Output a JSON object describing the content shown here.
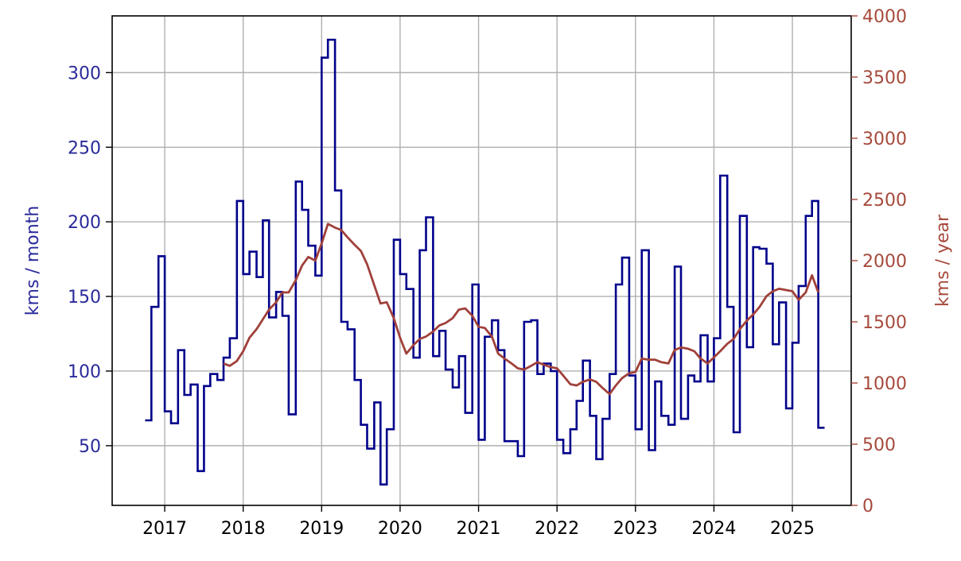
{
  "chart_data": {
    "type": "line",
    "title": "",
    "xlabel": "",
    "ylabel_left": "kms / month",
    "ylabel_right": "kms / year",
    "xlim": [
      2016.33,
      2025.75
    ],
    "ylim_left": [
      10,
      338
    ],
    "ylim_right": [
      0,
      4000
    ],
    "grid": true,
    "x_ticks": [
      2017,
      2018,
      2019,
      2020,
      2021,
      2022,
      2023,
      2024,
      2025
    ],
    "y_ticks_left": [
      50,
      100,
      150,
      200,
      250,
      300
    ],
    "y_ticks_right": [
      0,
      500,
      1000,
      1500,
      2000,
      2500,
      3000,
      3500,
      4000
    ],
    "colors": {
      "left": "#00008b",
      "right": "#a0403a",
      "left_tick": "#2a2a9a",
      "right_tick": "#a64a3c"
    },
    "series": [
      {
        "axis": "left",
        "style": "steps-post",
        "x": [
          2016.75,
          2016.83,
          2016.92,
          2017.0,
          2017.08,
          2017.17,
          2017.25,
          2017.33,
          2017.42,
          2017.5,
          2017.58,
          2017.67,
          2017.75,
          2017.83,
          2017.92,
          2018.0,
          2018.08,
          2018.17,
          2018.25,
          2018.33,
          2018.42,
          2018.5,
          2018.58,
          2018.67,
          2018.75,
          2018.83,
          2018.92,
          2019.0,
          2019.08,
          2019.17,
          2019.25,
          2019.33,
          2019.42,
          2019.5,
          2019.58,
          2019.67,
          2019.75,
          2019.83,
          2019.92,
          2020.0,
          2020.08,
          2020.17,
          2020.25,
          2020.33,
          2020.42,
          2020.5,
          2020.58,
          2020.67,
          2020.75,
          2020.83,
          2020.92,
          2021.0,
          2021.08,
          2021.17,
          2021.25,
          2021.33,
          2021.42,
          2021.5,
          2021.58,
          2021.67,
          2021.75,
          2021.83,
          2021.92,
          2022.0,
          2022.08,
          2022.17,
          2022.25,
          2022.33,
          2022.42,
          2022.5,
          2022.58,
          2022.67,
          2022.75,
          2022.83,
          2022.92,
          2023.0,
          2023.08,
          2023.17,
          2023.25,
          2023.33,
          2023.42,
          2023.5,
          2023.58,
          2023.67,
          2023.75,
          2023.83,
          2023.92,
          2024.0,
          2024.08,
          2024.17,
          2024.25,
          2024.33,
          2024.42,
          2024.5,
          2024.58,
          2024.67,
          2024.75,
          2024.83,
          2024.92,
          2025.0,
          2025.08,
          2025.17,
          2025.25,
          2025.33
        ],
        "y": [
          67,
          143,
          177,
          73,
          65,
          114,
          84,
          91,
          33,
          90,
          98,
          94,
          109,
          122,
          214,
          165,
          180,
          163,
          201,
          136,
          153,
          137,
          71,
          227,
          208,
          184,
          164,
          310,
          322,
          221,
          133,
          128,
          94,
          64,
          48,
          79,
          24,
          61,
          188,
          165,
          155,
          109,
          181,
          203,
          110,
          127,
          101,
          89,
          110,
          72,
          158,
          54,
          123,
          134,
          114,
          53,
          53,
          43,
          133,
          134,
          98,
          105,
          100,
          54,
          45,
          61,
          80,
          107,
          70,
          41,
          68,
          98,
          158,
          176,
          97,
          61,
          181,
          47,
          93,
          70,
          64,
          170,
          68,
          97,
          93,
          124,
          93,
          122,
          231,
          143,
          59,
          204,
          116,
          183,
          182,
          172,
          118,
          146,
          75,
          119,
          157,
          204,
          214,
          62
        ]
      },
      {
        "axis": "right",
        "style": "line",
        "x": [
          2017.75,
          2017.83,
          2017.92,
          2018.0,
          2018.08,
          2018.17,
          2018.25,
          2018.33,
          2018.42,
          2018.5,
          2018.58,
          2018.67,
          2018.75,
          2018.83,
          2018.92,
          2019.0,
          2019.08,
          2019.17,
          2019.25,
          2019.33,
          2019.42,
          2019.5,
          2019.58,
          2019.67,
          2019.75,
          2019.83,
          2019.92,
          2020.0,
          2020.08,
          2020.17,
          2020.25,
          2020.33,
          2020.42,
          2020.5,
          2020.58,
          2020.67,
          2020.75,
          2020.83,
          2020.92,
          2021.0,
          2021.08,
          2021.17,
          2021.25,
          2021.33,
          2021.42,
          2021.5,
          2021.58,
          2021.67,
          2021.75,
          2021.83,
          2021.92,
          2022.0,
          2022.08,
          2022.17,
          2022.25,
          2022.33,
          2022.42,
          2022.5,
          2022.58,
          2022.67,
          2022.75,
          2022.83,
          2022.92,
          2023.0,
          2023.08,
          2023.17,
          2023.25,
          2023.33,
          2023.42,
          2023.5,
          2023.58,
          2023.67,
          2023.75,
          2023.83,
          2023.92,
          2024.0,
          2024.08,
          2024.17,
          2024.25,
          2024.33,
          2024.42,
          2024.5,
          2024.58,
          2024.67,
          2024.75,
          2024.83,
          2024.92,
          2025.0,
          2025.08,
          2025.17,
          2025.25,
          2025.33
        ],
        "y": [
          1160,
          1140,
          1180,
          1260,
          1370,
          1440,
          1520,
          1600,
          1660,
          1740,
          1740,
          1840,
          1960,
          2030,
          2000,
          2140,
          2300,
          2270,
          2250,
          2190,
          2130,
          2080,
          1970,
          1800,
          1650,
          1660,
          1530,
          1370,
          1240,
          1310,
          1360,
          1380,
          1420,
          1470,
          1490,
          1530,
          1600,
          1610,
          1550,
          1460,
          1450,
          1380,
          1240,
          1200,
          1160,
          1120,
          1110,
          1140,
          1170,
          1150,
          1130,
          1120,
          1060,
          990,
          980,
          1010,
          1030,
          1010,
          960,
          910,
          980,
          1040,
          1080,
          1090,
          1200,
          1190,
          1190,
          1170,
          1160,
          1270,
          1290,
          1280,
          1260,
          1200,
          1160,
          1210,
          1260,
          1320,
          1360,
          1440,
          1510,
          1560,
          1620,
          1710,
          1750,
          1770,
          1760,
          1750,
          1680,
          1740,
          1880,
          1740
        ]
      }
    ]
  }
}
